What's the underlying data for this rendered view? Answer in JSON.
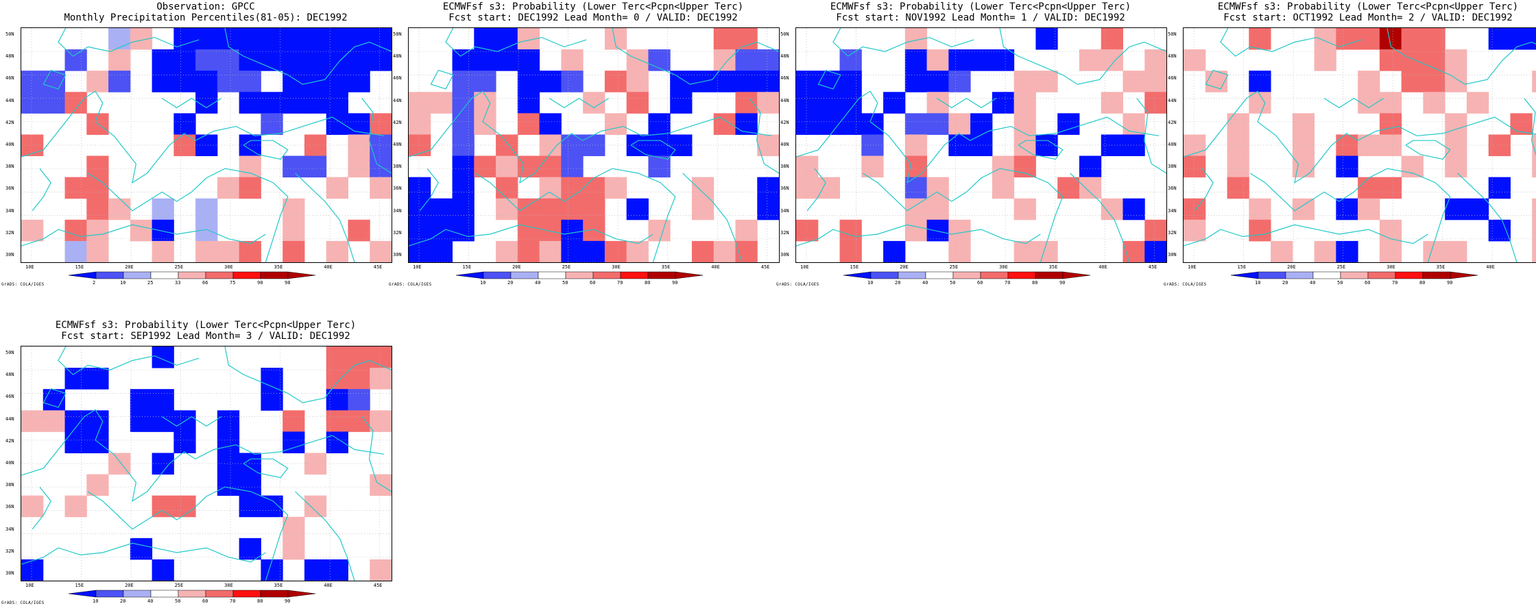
{
  "colors": {
    "coast": "#20c8c8",
    "grid": "#b8b8b8",
    "neg_strong": "#0010ff",
    "neg_mid": "#4c52f4",
    "neg_weak": "#aab0f4",
    "pos_weak": "#f7b3b3",
    "pos_mid": "#f36c6c",
    "pos_strong": "#ff1010",
    "pos_extreme": "#b00000"
  },
  "axes": {
    "y_ticks": [
      "50N",
      "48N",
      "46N",
      "44N",
      "42N",
      "40N",
      "38N",
      "36N",
      "34N",
      "32N",
      "30N"
    ],
    "x_ticks": [
      "10E",
      "15E",
      "20E",
      "25E",
      "30E",
      "35E",
      "40E",
      "45E"
    ]
  },
  "credit": "GrADS: COLA/IGES",
  "panels": [
    {
      "line1": "Observation: GPCC",
      "line2": "Monthly Precipitation Percentiles(81-05): DEC1992",
      "colorbar_labels": [
        "2",
        "10",
        "25",
        "33",
        "66",
        "75",
        "90",
        "98"
      ],
      "grid": [
        "....-+.DDDDDDDDDD",
        "..w.+.DDwwDDDDDDD",
        "ww.+w.DDDww.DDDD.",
        "wwo.....D.DDDDD..",
        "...o...D...w..DDo",
        "o......oD.D..o.+w",
        "...o......+.ww.+w",
        "..oo.....+o...+.+",
        "...o+.-.-...+....",
        "+.o+.+D.-...+..o.",
        "..-+..+.++o.o.+.+"
      ]
    },
    {
      "line1": "ECMWFsf s3: Probability (Lower Terc<Pcpn<Upper Terc)",
      "line2": "Fcst start: DEC1992  Lead Month= 0 / VALID: DEC1992",
      "colorbar_labels": [
        "10",
        "20",
        "40",
        "50",
        "60",
        "70",
        "80",
        "90"
      ],
      "grid": [
        "...DD+...+....oo.",
        "..DDDD.+..+w..+ww",
        "..ww.DDw.o+.DDDDD",
        "++w+.D..+.o.D..o+",
        "+.w+.oD..+.D..oD.",
        "o.w.o.+ww.DDD...+",
        "..Do+oow...w.....",
        "D.D.o.+oo+...+..D",
        "DDD.+oooo.D..+..D",
        "DDD..ooDo..+...+.",
        "DD..+o+DDo+..o+o."
      ]
    },
    {
      "line1": "ECMWFsf s3: Probability (Lower Terc<Pcpn<Upper Terc)",
      "line2": "Fcst start: NOV1992  Lead Month= 1 / VALID: DEC1992",
      "colorbar_labels": [
        "10",
        "20",
        "40",
        "50",
        "60",
        "70",
        "80",
        "90"
      ],
      "grid": [
        ".....+.....D..o..",
        "..w..D+DDD...++.+",
        "DDD..DDw..++...++",
        "DDD.D.+..D+...+.o",
        "DDDD.ww+D.+.D..+.",
        "...w.+.DD.+D..DD.",
        "+..+.o...+o..D...",
        "++...w+..+..o+...",
        ".....++...+...+D.",
        "o.o..+D+........o",
        "..o.D..+..++...oD"
      ]
    },
    {
      "line1": "ECMWFsf s3: Probability (Lower Terc<Pcpn<Upper Terc)",
      "line2": "Fcst start: OCT1992  Lead Month= 2 / VALID: DEC1992",
      "colorbar_labels": [
        "10",
        "20",
        "40",
        "50",
        "60",
        "70",
        "80",
        "90"
      ],
      "grid": [
        "...o..+ooXoo..DDD",
        "+.....+..ooo+....",
        ".+.D....+.oo+...+",
        "...+....++.+.+...",
        "..+..+...o..+..o.",
        "+.+..+.o++..+.o.+",
        "o.+..+.D..+.+...+",
        "..o.....oo....D..",
        "o..+.+.D+...DD..+",
        "+..o.....+....D.+",
        "....+.+D.+.++...+"
      ]
    },
    {
      "line1": "ECMWFsf s3: Probability (Lower Terc<Pcpn<Upper Terc)",
      "line2": "Fcst start: SEP1992  Lead Month= 3 / VALID: DEC1992",
      "colorbar_labels": [
        "10",
        "20",
        "40",
        "50",
        "60",
        "70",
        "80",
        "90"
      ],
      "grid": [
        "......D.......ooo",
        "..DD.......D..oo+",
        ".D...DD....D..Dw.",
        "++DD.DDD.D..o.oo+",
        "..DD...D.D..D.D..",
        "....+.D..DD..+...",
        "...+.....DD.....+",
        "+.+...oo..DD.+...",
        "............+....",
        ".....D....D.+....",
        "D.....D....D.DD.+"
      ]
    }
  ]
}
